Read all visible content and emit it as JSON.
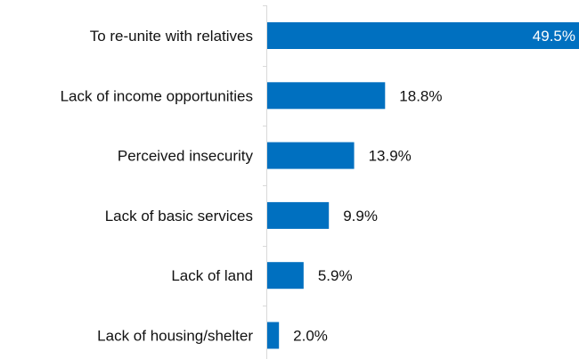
{
  "chart_data": {
    "type": "bar",
    "orientation": "horizontal",
    "categories": [
      "To re-unite with relatives",
      "Lack of income opportunities",
      "Perceived insecurity",
      "Lack of basic services",
      "Lack of land",
      "Lack of housing/shelter"
    ],
    "values": [
      49.5,
      18.8,
      13.9,
      9.9,
      5.9,
      2.0
    ],
    "value_labels": [
      "49.5%",
      "18.8%",
      "13.9%",
      "9.9%",
      "5.9%",
      "2.0%"
    ],
    "xlim": [
      0,
      49.5
    ],
    "bar_color": "#0070c0",
    "axis_color": "#d9d9d9",
    "grid": false,
    "legend": "none"
  }
}
